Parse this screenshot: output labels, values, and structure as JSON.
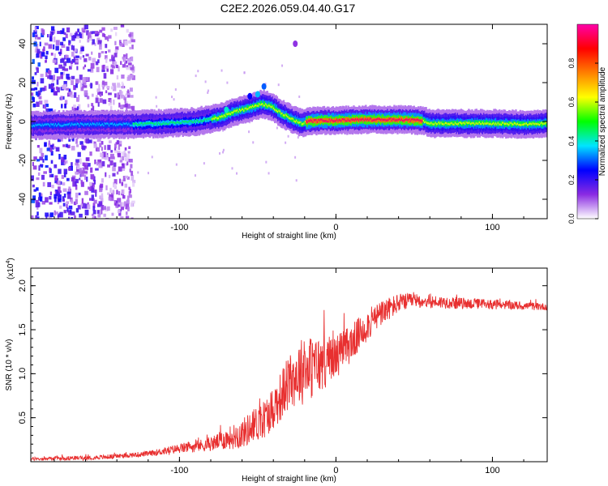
{
  "title": "C2E2.2026.059.04.40.G17",
  "chart_data": [
    {
      "type": "heatmap",
      "xlabel": "Height of straight line (km)",
      "ylabel": "Frequency (Hz)",
      "xlim": [
        -195,
        135
      ],
      "ylim": [
        -50,
        50
      ],
      "xticks": [
        -100,
        0,
        100
      ],
      "xtick_labels": [
        "-100",
        "0",
        "100"
      ],
      "yticks": [
        -40,
        -20,
        0,
        20,
        40
      ],
      "ytick_labels": [
        "-40",
        "-20",
        "0",
        "20",
        "40"
      ],
      "ridge": {
        "x": [
          -195,
          -160,
          -130,
          -110,
          -90,
          -75,
          -65,
          -55,
          -48,
          -42,
          -35,
          -28,
          -22,
          -18,
          -10,
          0,
          20,
          40,
          55,
          60,
          80,
          100,
          120,
          135
        ],
        "y": [
          -2,
          -1.5,
          -1.5,
          -1,
          0,
          2,
          5,
          7,
          9,
          8,
          4,
          1,
          -1,
          0,
          0.5,
          0.5,
          1,
          1,
          0.5,
          -1,
          -1,
          -1,
          -1.5,
          -1
        ]
      },
      "colorbar": {
        "label": "Normalized spectral amplitude",
        "range": [
          0,
          1
        ],
        "ticks": [
          0.0,
          0.2,
          0.4,
          0.6,
          0.8
        ],
        "tick_labels": [
          "0.0",
          "0.2",
          "0.4",
          "0.6",
          "0.8"
        ],
        "colors": [
          "#ffffff",
          "#8a2be2",
          "#0000ff",
          "#00e5ff",
          "#00ff00",
          "#ffff00",
          "#ff8000",
          "#ff0000",
          "#ff00aa"
        ]
      },
      "noise_region_x": [
        -195,
        -130
      ]
    },
    {
      "type": "line",
      "series": [
        {
          "name": "SNR",
          "color": "#e83030"
        }
      ],
      "xlabel": "Height of straight line (km)",
      "ylabel": "SNR (10 * v/v)",
      "y_multiplier_label": "(x10",
      "y_multiplier_exp": "4",
      "y_multiplier_close": ")",
      "xlim": [
        -195,
        135
      ],
      "ylim": [
        0,
        22000
      ],
      "xticks": [
        -100,
        0,
        100
      ],
      "xtick_labels": [
        "-100",
        "0",
        "100"
      ],
      "yticks": [
        5000,
        10000,
        15000,
        20000
      ],
      "ytick_labels": [
        "0.5",
        "1.0",
        "1.5",
        "2.0"
      ],
      "envelope": {
        "x": [
          -195,
          -150,
          -120,
          -100,
          -80,
          -60,
          -45,
          -35,
          -30,
          -25,
          -20,
          -10,
          0,
          10,
          20,
          30,
          40,
          50,
          60,
          80,
          100,
          120,
          135
        ],
        "y": [
          300,
          500,
          900,
          1500,
          2000,
          3200,
          5000,
          7500,
          9000,
          10000,
          10500,
          11000,
          12000,
          13500,
          15500,
          17000,
          18000,
          18300,
          18200,
          18000,
          17900,
          17700,
          17600
        ]
      },
      "noise_amplitude": {
        "x": [
          -195,
          -120,
          -80,
          -40,
          -20,
          0,
          20,
          50,
          135
        ],
        "y": [
          200,
          300,
          800,
          2500,
          4000,
          2500,
          1800,
          800,
          400
        ]
      }
    }
  ]
}
